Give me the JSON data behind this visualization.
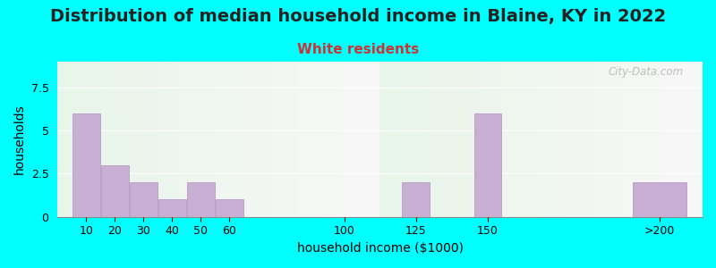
{
  "title": "Distribution of median household income in Blaine, KY in 2022",
  "subtitle": "White residents",
  "xlabel": "household income ($1000)",
  "ylabel": "households",
  "background_color": "#00ffff",
  "plot_bg_gradient_top": "#e8f5e9",
  "plot_bg_gradient_bottom": "#f8f8f8",
  "bar_color": "#c9afd4",
  "bar_edge_color": "#b090c0",
  "yticks": [
    0,
    2.5,
    5,
    7.5
  ],
  "ylim": [
    0,
    9
  ],
  "values": [
    6,
    3,
    2,
    1,
    2,
    1,
    0,
    2,
    6,
    2
  ],
  "bar_positions": [
    10,
    20,
    30,
    40,
    50,
    60,
    100,
    125,
    150,
    210
  ],
  "bar_widths": [
    9.5,
    9.5,
    9.5,
    9.5,
    9.5,
    9.5,
    9.5,
    9.5,
    9.5,
    19
  ],
  "xtick_labels": [
    "10",
    "20",
    "30",
    "40",
    "50",
    "60",
    "100",
    "125",
    "150",
    ">200"
  ],
  "xtick_positions": [
    10,
    20,
    30,
    40,
    50,
    60,
    100,
    125,
    150,
    210
  ],
  "xlim": [
    0,
    225
  ],
  "watermark": "City-Data.com",
  "title_fontsize": 14,
  "subtitle_fontsize": 11,
  "subtitle_color": "#cc3333",
  "axis_label_fontsize": 10,
  "tick_fontsize": 9
}
